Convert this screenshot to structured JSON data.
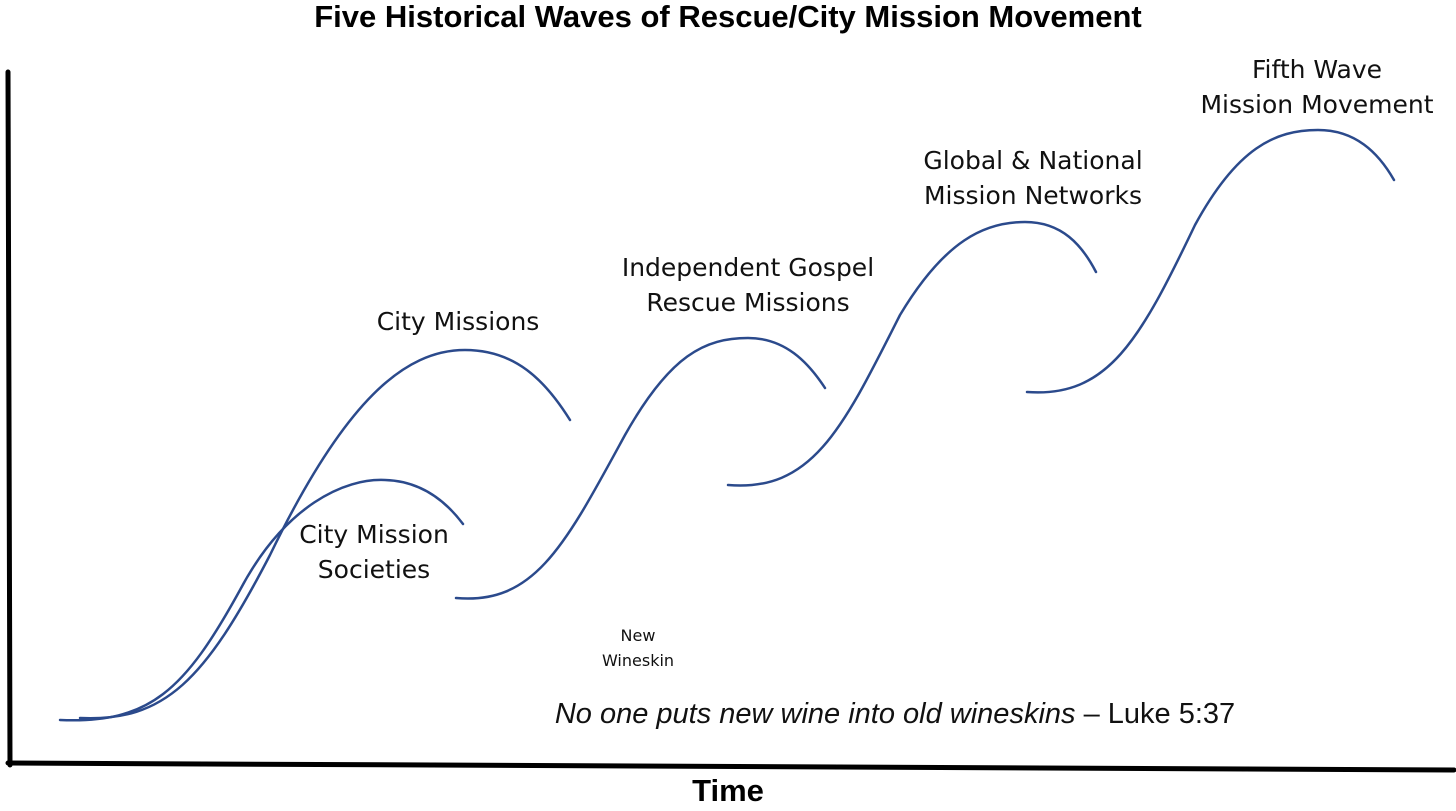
{
  "title": "Five Historical Waves of Rescue/City Mission Movement",
  "x_axis_label": "Time",
  "line_color": "#2b4a8c",
  "waves": [
    {
      "label": "City Mission\nSocieties"
    },
    {
      "label": "City Missions"
    },
    {
      "label": "Independent Gospel\nRescue Missions"
    },
    {
      "label": "Global & National\nMission Networks"
    },
    {
      "label": "Fifth Wave\nMission Movement"
    }
  ],
  "annotation": "New\nWineskin",
  "quote": {
    "text": "No one puts new wine into old wineskins",
    "citation": " – Luke 5:37"
  }
}
